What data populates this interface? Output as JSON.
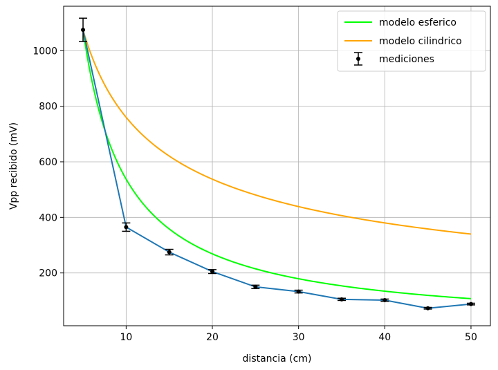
{
  "chart_data": {
    "type": "line",
    "title": "",
    "xlabel": "distancia (cm)",
    "ylabel": "Vpp recibido (mV)",
    "xlim": [
      2.75,
      52.25
    ],
    "ylim": [
      10,
      1160
    ],
    "xticks": [
      10,
      20,
      30,
      40,
      50
    ],
    "yticks": [
      200,
      400,
      600,
      800,
      1000
    ],
    "grid": true,
    "legend_position": "top-right",
    "series": [
      {
        "name": "modelo esferico",
        "kind": "model",
        "color": "#00ff00",
        "formula_reference": {
          "x0": 5,
          "v0": 1075,
          "exponent": 1
        },
        "x_range": [
          5,
          50
        ]
      },
      {
        "name": "modelo cilindrico",
        "kind": "model",
        "color": "#ffa500",
        "formula_reference": {
          "x0": 5,
          "v0": 1075,
          "exponent": 0.5
        },
        "x_range": [
          5,
          50
        ]
      },
      {
        "name": "mediciones",
        "kind": "errorbar",
        "line_color": "#1f77b4",
        "marker_color": "#000000",
        "x": [
          5,
          10,
          15,
          20,
          25,
          30,
          35,
          40,
          45,
          50
        ],
        "y": [
          1075,
          365,
          275,
          205,
          150,
          133,
          105,
          102,
          73,
          88
        ],
        "yerr": [
          42,
          15,
          10,
          7,
          6,
          5,
          4,
          4,
          3,
          3
        ]
      }
    ]
  }
}
